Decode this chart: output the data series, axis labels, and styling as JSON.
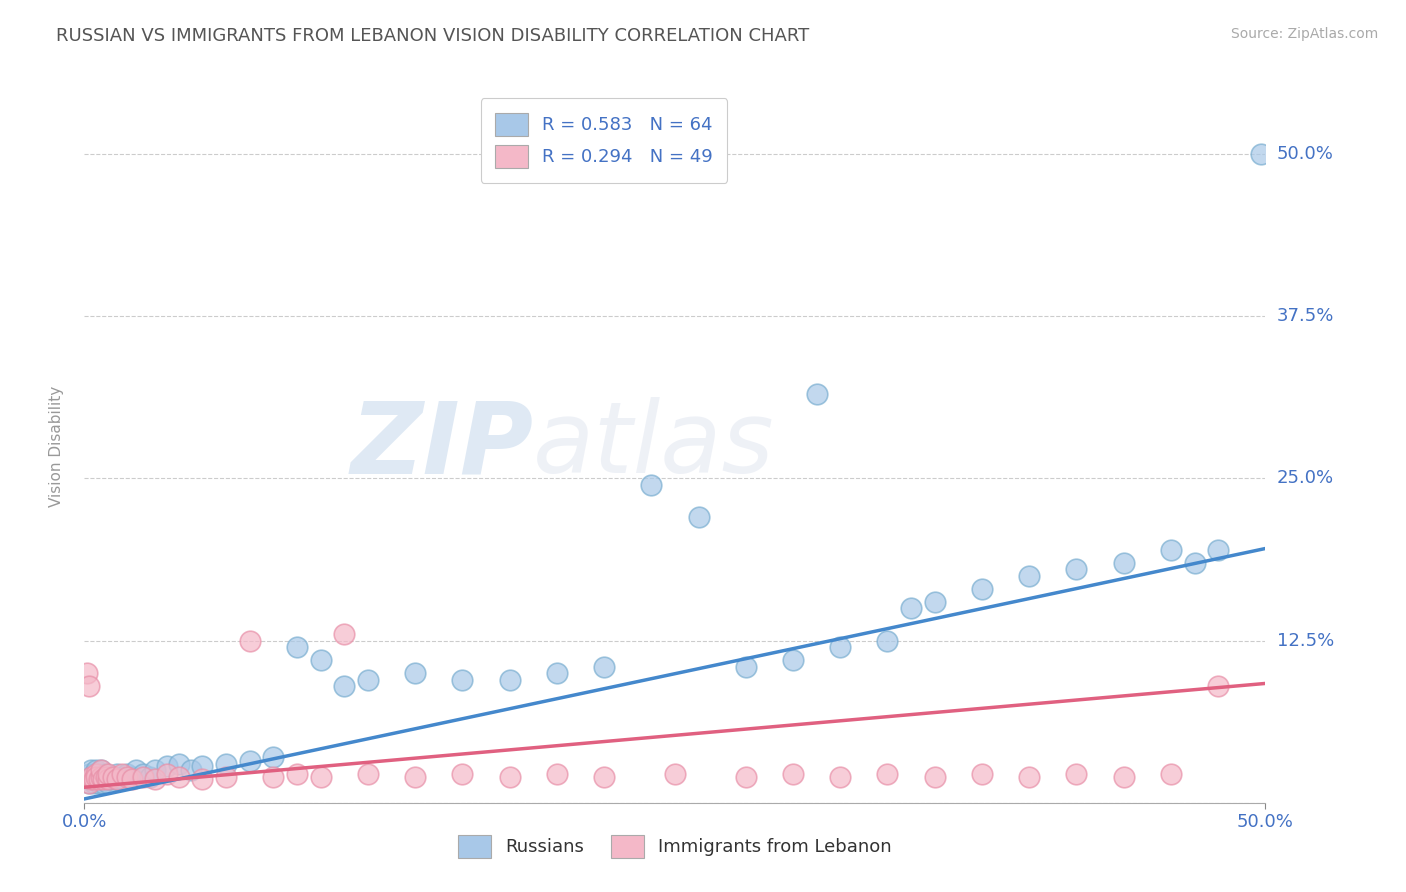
{
  "title": "RUSSIAN VS IMMIGRANTS FROM LEBANON VISION DISABILITY CORRELATION CHART",
  "source": "Source: ZipAtlas.com",
  "ylabel": "Vision Disability",
  "xlim": [
    0.0,
    0.5
  ],
  "ylim": [
    0.0,
    0.55
  ],
  "xticks": [
    0.0,
    0.5
  ],
  "xtick_labels": [
    "0.0%",
    "50.0%"
  ],
  "ytick_vals": [
    0.0,
    0.125,
    0.25,
    0.375,
    0.5
  ],
  "ytick_labels": [
    "",
    "12.5%",
    "25.0%",
    "37.5%",
    "50.0%"
  ],
  "blue_color": "#a8c8e8",
  "blue_edge_color": "#7aaed0",
  "pink_color": "#f4b8c8",
  "pink_edge_color": "#e890a8",
  "blue_line_color": "#4488cc",
  "pink_line_color": "#e06080",
  "legend_blue_label": "R = 0.583   N = 64",
  "legend_pink_label": "R = 0.294   N = 49",
  "legend_bottom_blue": "Russians",
  "legend_bottom_pink": "Immigrants from Lebanon",
  "watermark_text": "ZIPAtlas",
  "blue_scatter_x": [
    0.001,
    0.002,
    0.002,
    0.003,
    0.003,
    0.004,
    0.004,
    0.005,
    0.005,
    0.006,
    0.006,
    0.007,
    0.007,
    0.008,
    0.008,
    0.009,
    0.009,
    0.01,
    0.01,
    0.011,
    0.012,
    0.013,
    0.014,
    0.015,
    0.016,
    0.018,
    0.02,
    0.022,
    0.025,
    0.028,
    0.03,
    0.035,
    0.04,
    0.045,
    0.05,
    0.06,
    0.07,
    0.08,
    0.09,
    0.1,
    0.11,
    0.12,
    0.14,
    0.16,
    0.18,
    0.2,
    0.22,
    0.24,
    0.26,
    0.28,
    0.3,
    0.31,
    0.32,
    0.34,
    0.35,
    0.36,
    0.38,
    0.4,
    0.42,
    0.44,
    0.46,
    0.47,
    0.48,
    0.498
  ],
  "blue_scatter_y": [
    0.018,
    0.015,
    0.022,
    0.018,
    0.025,
    0.015,
    0.022,
    0.018,
    0.025,
    0.015,
    0.022,
    0.018,
    0.025,
    0.015,
    0.02,
    0.018,
    0.022,
    0.015,
    0.02,
    0.018,
    0.02,
    0.018,
    0.022,
    0.02,
    0.018,
    0.022,
    0.02,
    0.025,
    0.022,
    0.02,
    0.025,
    0.028,
    0.03,
    0.025,
    0.028,
    0.03,
    0.032,
    0.035,
    0.12,
    0.11,
    0.09,
    0.095,
    0.1,
    0.095,
    0.095,
    0.1,
    0.105,
    0.245,
    0.22,
    0.105,
    0.11,
    0.315,
    0.12,
    0.125,
    0.15,
    0.155,
    0.165,
    0.175,
    0.18,
    0.185,
    0.195,
    0.185,
    0.195,
    0.5
  ],
  "pink_scatter_x": [
    0.001,
    0.002,
    0.002,
    0.003,
    0.003,
    0.004,
    0.005,
    0.005,
    0.006,
    0.007,
    0.007,
    0.008,
    0.009,
    0.01,
    0.01,
    0.012,
    0.014,
    0.016,
    0.018,
    0.02,
    0.025,
    0.03,
    0.035,
    0.04,
    0.05,
    0.06,
    0.07,
    0.08,
    0.09,
    0.1,
    0.11,
    0.12,
    0.14,
    0.16,
    0.18,
    0.2,
    0.22,
    0.25,
    0.28,
    0.3,
    0.32,
    0.34,
    0.36,
    0.38,
    0.4,
    0.42,
    0.44,
    0.46,
    0.48
  ],
  "pink_scatter_y": [
    0.1,
    0.015,
    0.09,
    0.018,
    0.02,
    0.018,
    0.022,
    0.02,
    0.018,
    0.02,
    0.025,
    0.018,
    0.02,
    0.018,
    0.022,
    0.02,
    0.018,
    0.022,
    0.02,
    0.018,
    0.02,
    0.018,
    0.022,
    0.02,
    0.018,
    0.02,
    0.125,
    0.02,
    0.022,
    0.02,
    0.13,
    0.022,
    0.02,
    0.022,
    0.02,
    0.022,
    0.02,
    0.022,
    0.02,
    0.022,
    0.02,
    0.022,
    0.02,
    0.022,
    0.02,
    0.022,
    0.02,
    0.022,
    0.09
  ],
  "blue_line_x": [
    0.0,
    0.5
  ],
  "blue_line_y": [
    0.003,
    0.196
  ],
  "pink_line_x": [
    0.0,
    0.5
  ],
  "pink_line_y": [
    0.012,
    0.092
  ]
}
